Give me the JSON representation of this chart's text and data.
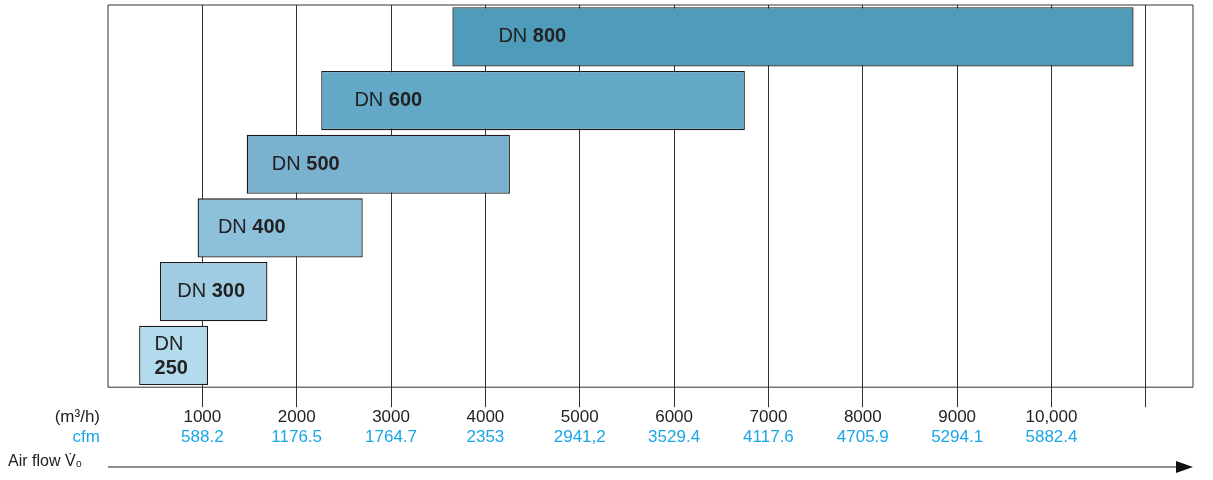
{
  "chart_data": {
    "type": "bar",
    "orientation": "horizontal",
    "categories": [
      "DN 800",
      "DN 600",
      "DN 500",
      "DN 400",
      "DN 300",
      "DN 250"
    ],
    "base": [
      3650,
      2260,
      1470,
      950,
      550,
      330
    ],
    "values": [
      7220,
      4490,
      2790,
      1750,
      1140,
      730
    ],
    "colors": [
      "#4f9bba",
      "#63a8c6",
      "#7ab1cf",
      "#8cc0db",
      "#a0cce3",
      "#b3dbee"
    ],
    "xlim": [
      0,
      11500
    ],
    "xticks": [
      1000,
      2000,
      3000,
      4000,
      5000,
      6000,
      7000,
      8000,
      9000,
      {
        "value": 10000,
        "label": "10,000"
      },
      {
        "value": 11000,
        "label": null
      }
    ],
    "x2lim": [
      0,
      6764.7
    ],
    "x2ticks": [
      588.2,
      1176.5,
      1764.7,
      2353,
      {
        "value": 2941.2,
        "label": "2941,2"
      },
      3529.4,
      4117.6,
      4705.9,
      5294.1,
      5882.4
    ],
    "x2label": "cfm",
    "xlabel": "Air flow V̇₀",
    "annotations": [
      "(m³/h)"
    ],
    "grid": "x",
    "legend": false,
    "tick_labels": "x"
  }
}
